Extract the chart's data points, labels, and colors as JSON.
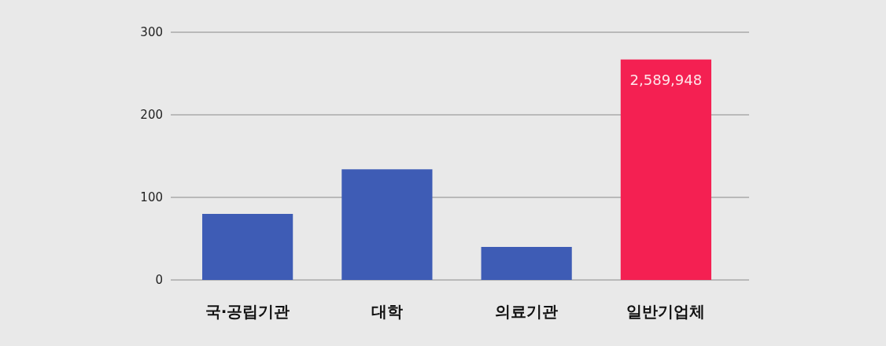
{
  "chart_data": {
    "type": "bar",
    "categories": [
      "국·공립기관",
      "대학",
      "의료기관",
      "일반기업체"
    ],
    "values": [
      80,
      134,
      40,
      267
    ],
    "colors": [
      "#3e5cb5",
      "#3e5cb5",
      "#3e5cb5",
      "#f42052"
    ],
    "annotations": [
      {
        "text": "2,589,948",
        "x": "일반기업체",
        "y": 267
      }
    ],
    "ylim": [
      0,
      300
    ],
    "yticks": [
      0,
      100,
      200,
      300
    ],
    "grid": "y"
  }
}
